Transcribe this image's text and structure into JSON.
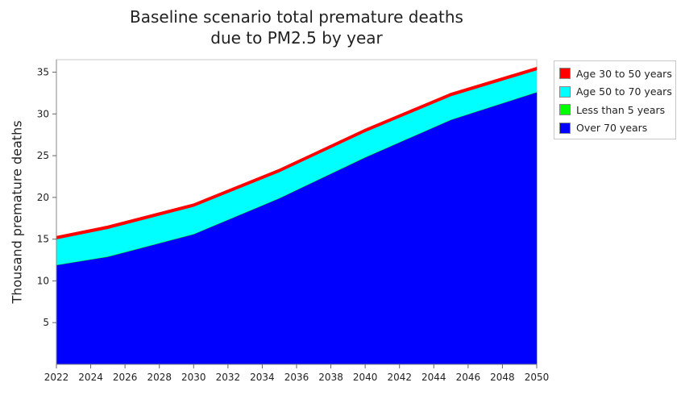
{
  "chart_data": {
    "type": "area",
    "stacked": true,
    "title_lines": [
      "Baseline scenario total premature deaths",
      "due to PM2.5 by year"
    ],
    "ylabel": "Thousand premature deaths",
    "xlabel": "",
    "xlim": [
      2022,
      2050
    ],
    "ylim": [
      0,
      36.5
    ],
    "x_ticks": [
      "2022",
      "2024",
      "2026",
      "2028",
      "2030",
      "2032",
      "2034",
      "2036",
      "2038",
      "2040",
      "2042",
      "2044",
      "2046",
      "2048",
      "2050"
    ],
    "y_ticks": [
      "5",
      "10",
      "15",
      "20",
      "25",
      "30",
      "35"
    ],
    "grid": "none",
    "legend_position": "right",
    "x": [
      2022,
      2025,
      2030,
      2035,
      2040,
      2045,
      2050
    ],
    "series": [
      {
        "name": "Over 70 years",
        "color": "#0000ff",
        "values": [
          11.9,
          12.9,
          15.6,
          19.9,
          24.8,
          29.3,
          32.6
        ]
      },
      {
        "name": "Less than 5 years",
        "color": "#00ff00",
        "values": [
          0.05,
          0.05,
          0.05,
          0.05,
          0.05,
          0.05,
          0.05
        ]
      },
      {
        "name": "Age 50 to 70 years",
        "color": "#00ffff",
        "values": [
          3.05,
          3.3,
          3.25,
          3.1,
          3.0,
          2.8,
          2.6
        ]
      },
      {
        "name": "Age 30 to 50 years",
        "color": "#ff0000",
        "values": [
          0.35,
          0.35,
          0.35,
          0.35,
          0.35,
          0.35,
          0.35
        ]
      }
    ],
    "legend_order": [
      "Age 30 to 50 years",
      "Age 50 to 70 years",
      "Less than 5 years",
      "Over 70 years"
    ]
  }
}
